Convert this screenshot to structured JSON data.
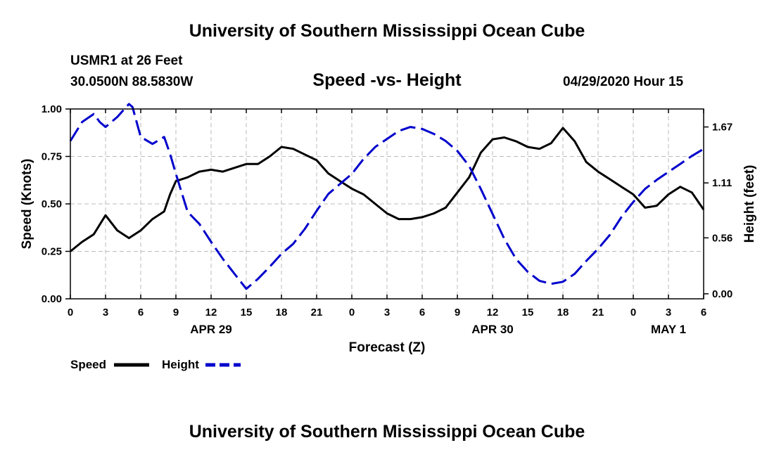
{
  "header": {
    "title": "University of Southern Mississippi Ocean Cube",
    "station": "USMR1 at 26 Feet",
    "coordinates": "30.0500N 88.5830W",
    "chart_title": "Speed -vs- Height",
    "datetime": "04/29/2020 Hour 15"
  },
  "footer": {
    "title": "University of Southern Mississippi Ocean Cube"
  },
  "legend": {
    "speed_label": "Speed",
    "height_label": "Height"
  },
  "colors": {
    "speed": "#000000",
    "height": "#0000cc",
    "grid": "#bbbbbb"
  },
  "chart_data": {
    "type": "line",
    "title": "Speed -vs- Height",
    "xlabel": "Forecast (Z)",
    "ylabel": "Speed (Knots)",
    "y2label": "Height (feet)",
    "xlim": [
      0,
      54
    ],
    "ylim": [
      0,
      1
    ],
    "y2lim": [
      -0.05,
      1.85
    ],
    "x_ticks": [
      0,
      3,
      6,
      9,
      12,
      15,
      18,
      21,
      24,
      27,
      30,
      33,
      36,
      39,
      42,
      45,
      48,
      51,
      54
    ],
    "x_tick_labels": [
      "0",
      "3",
      "6",
      "9",
      "12",
      "15",
      "18",
      "21",
      "0",
      "3",
      "6",
      "9",
      "12",
      "15",
      "18",
      "21",
      "0",
      "3",
      "6"
    ],
    "y_ticks": [
      0,
      0.25,
      0.5,
      0.75,
      1
    ],
    "y_tick_labels": [
      "0.00",
      "0.25",
      "0.50",
      "0.75",
      "1.00"
    ],
    "y2_ticks": [
      0,
      0.56,
      1.11,
      1.67
    ],
    "y2_tick_labels": [
      "0.00",
      "0.56",
      "1.11",
      "1.67"
    ],
    "date_labels": [
      {
        "x": 12,
        "label": "APR 29"
      },
      {
        "x": 36,
        "label": "APR 30"
      },
      {
        "x": 51,
        "label": "MAY 1"
      }
    ],
    "grid": true,
    "series": [
      {
        "name": "Speed",
        "axis": "left",
        "style": "solid",
        "x": [
          0,
          1,
          2,
          3,
          4,
          5,
          6,
          7,
          8,
          8.5,
          9,
          10,
          11,
          12,
          13,
          14,
          15,
          16,
          17,
          18,
          19,
          20,
          21,
          22,
          23,
          24,
          25,
          26,
          27,
          28,
          29,
          30,
          31,
          32,
          33,
          34,
          35,
          36,
          37,
          38,
          39,
          40,
          41,
          42,
          43,
          44,
          45,
          46,
          47,
          48,
          49,
          50,
          51,
          52,
          53,
          54
        ],
        "values": [
          0.25,
          0.3,
          0.34,
          0.44,
          0.36,
          0.32,
          0.36,
          0.42,
          0.46,
          0.55,
          0.62,
          0.64,
          0.67,
          0.68,
          0.67,
          0.69,
          0.71,
          0.71,
          0.75,
          0.8,
          0.79,
          0.76,
          0.73,
          0.66,
          0.62,
          0.58,
          0.55,
          0.5,
          0.45,
          0.42,
          0.42,
          0.43,
          0.45,
          0.48,
          0.56,
          0.64,
          0.77,
          0.84,
          0.85,
          0.83,
          0.8,
          0.79,
          0.82,
          0.9,
          0.83,
          0.72,
          0.67,
          0.63,
          0.59,
          0.55,
          0.48,
          0.49,
          0.55,
          0.59,
          0.56,
          0.47
        ]
      },
      {
        "name": "Height",
        "axis": "right",
        "style": "dashed",
        "x": [
          0,
          1,
          2,
          2.5,
          3,
          4,
          5,
          5.3,
          6,
          7,
          8,
          8.5,
          9,
          10,
          11,
          12,
          13,
          14,
          15,
          16,
          17,
          18,
          19,
          20,
          21,
          22,
          23,
          24,
          25,
          26,
          27,
          28,
          29,
          30,
          31,
          32,
          33,
          34,
          35,
          36,
          37,
          38,
          39,
          40,
          41,
          42,
          43,
          44,
          45,
          46,
          47,
          48,
          49,
          50,
          51,
          52,
          53,
          54
        ],
        "values": [
          1.53,
          1.72,
          1.8,
          1.72,
          1.67,
          1.77,
          1.9,
          1.87,
          1.57,
          1.5,
          1.57,
          1.4,
          1.2,
          0.82,
          0.7,
          0.52,
          0.35,
          0.2,
          0.05,
          0.15,
          0.27,
          0.4,
          0.5,
          0.65,
          0.83,
          1.0,
          1.1,
          1.2,
          1.35,
          1.47,
          1.55,
          1.63,
          1.67,
          1.65,
          1.6,
          1.53,
          1.43,
          1.28,
          1.05,
          0.8,
          0.55,
          0.35,
          0.22,
          0.13,
          0.1,
          0.12,
          0.2,
          0.33,
          0.45,
          0.59,
          0.77,
          0.92,
          1.05,
          1.14,
          1.22,
          1.3,
          1.38,
          1.45
        ]
      }
    ]
  }
}
